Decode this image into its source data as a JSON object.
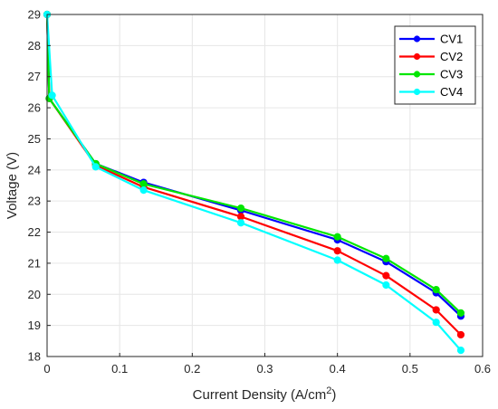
{
  "chart_data": {
    "type": "line",
    "xlabel": "Current Density (A/cm",
    "xlabel_superscript": "2",
    "xlabel_suffix": ")",
    "ylabel": "Voltage (V)",
    "xlim": [
      0,
      0.6
    ],
    "ylim": [
      18,
      29
    ],
    "xticks": [
      0,
      0.1,
      0.2,
      0.3,
      0.4,
      0.5,
      0.6
    ],
    "xtick_labels": [
      "0",
      "0.1",
      "0.2",
      "0.3",
      "0.4",
      "0.5",
      "0.6"
    ],
    "yticks": [
      18,
      19,
      20,
      21,
      22,
      23,
      24,
      25,
      26,
      27,
      28,
      29
    ],
    "ytick_labels": [
      "18",
      "19",
      "20",
      "21",
      "22",
      "23",
      "24",
      "25",
      "26",
      "27",
      "28",
      "29"
    ],
    "grid": true,
    "legend_position": "top-right",
    "series": [
      {
        "name": "CV1",
        "color": "#0000ff",
        "x": [
          0,
          0.003,
          0.067,
          0.133,
          0.267,
          0.4,
          0.467,
          0.536,
          0.57
        ],
        "y": [
          29.0,
          26.3,
          24.2,
          23.6,
          22.7,
          21.75,
          21.05,
          20.05,
          19.3
        ]
      },
      {
        "name": "CV2",
        "color": "#ff0000",
        "x": [
          0,
          0.003,
          0.067,
          0.133,
          0.267,
          0.4,
          0.467,
          0.536,
          0.57
        ],
        "y": [
          29.0,
          26.3,
          24.15,
          23.45,
          22.5,
          21.4,
          20.6,
          19.5,
          18.7
        ]
      },
      {
        "name": "CV3",
        "color": "#00e600",
        "x": [
          0,
          0.003,
          0.067,
          0.133,
          0.267,
          0.4,
          0.467,
          0.536,
          0.57
        ],
        "y": [
          29.0,
          26.3,
          24.2,
          23.55,
          22.77,
          21.85,
          21.15,
          20.15,
          19.4
        ]
      },
      {
        "name": "CV4",
        "color": "#00ffff",
        "x": [
          0,
          0.007,
          0.067,
          0.133,
          0.267,
          0.4,
          0.467,
          0.536,
          0.57
        ],
        "y": [
          29.0,
          26.4,
          24.1,
          23.35,
          22.3,
          21.1,
          20.3,
          19.1,
          18.2
        ]
      }
    ]
  }
}
